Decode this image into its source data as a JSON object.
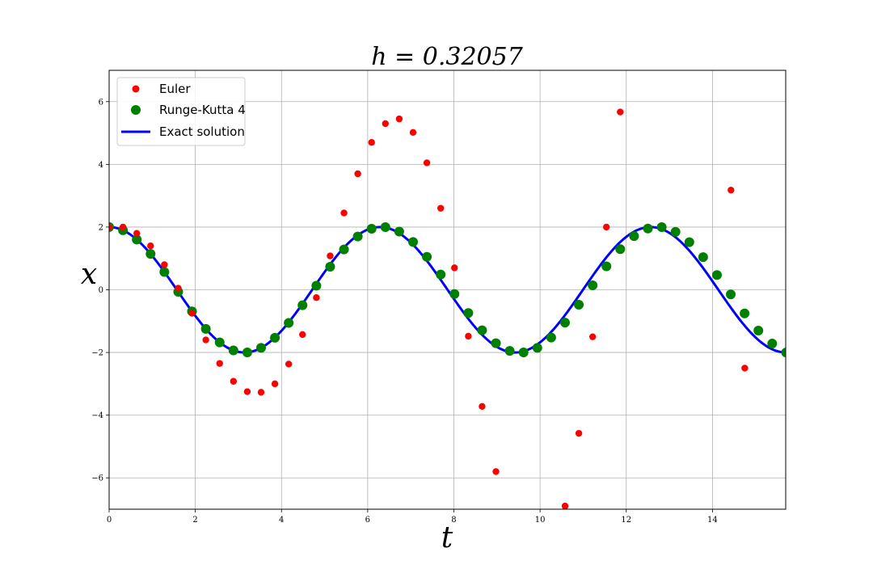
{
  "chart_data": {
    "type": "scatter",
    "title": "h = 0.32057",
    "xlabel": "t",
    "ylabel": "x",
    "xlim": [
      0,
      15.7
    ],
    "ylim": [
      -7,
      7
    ],
    "x_ticks": [
      0,
      2,
      4,
      6,
      8,
      10,
      12,
      14
    ],
    "y_ticks": [
      -6,
      -4,
      -2,
      0,
      2,
      4,
      6
    ],
    "x_tick_labels": [
      "0",
      "2",
      "4",
      "6",
      "8",
      "10",
      "12",
      "14"
    ],
    "y_tick_labels": [
      "−6",
      "−4",
      "−2",
      "0",
      "2",
      "4",
      "6"
    ],
    "grid": true,
    "legend_position": "top-left",
    "step": 0.32057,
    "series": [
      {
        "name": "Euler",
        "kind": "markers",
        "color": "#ff0000",
        "x": [
          0,
          0.321,
          0.641,
          0.962,
          1.282,
          1.603,
          1.923,
          2.244,
          2.565,
          2.885,
          3.206,
          3.526,
          3.847,
          4.167,
          4.488,
          4.809,
          5.129,
          5.45,
          5.77,
          6.091,
          6.411,
          6.732,
          7.053,
          7.373,
          7.694,
          8.014,
          8.335,
          8.655,
          8.976,
          10.58,
          10.9,
          11.22,
          11.54,
          11.86,
          14.43,
          14.75
        ],
        "y": [
          2.0,
          2.0,
          1.8,
          1.4,
          0.8,
          0.05,
          -0.75,
          -1.6,
          -2.35,
          -2.92,
          -3.25,
          -3.27,
          -3.0,
          -2.37,
          -1.43,
          -0.25,
          1.08,
          2.45,
          3.7,
          4.7,
          5.3,
          5.45,
          5.02,
          4.05,
          2.6,
          0.7,
          -1.48,
          -3.72,
          -5.8,
          -6.9,
          -4.58,
          -1.5,
          2.0,
          5.67,
          3.18,
          -2.5
        ]
      },
      {
        "name": "Runge-Kutta 4",
        "kind": "markers",
        "color": "#008000",
        "x": [
          0,
          0.321,
          0.641,
          0.962,
          1.282,
          1.603,
          1.923,
          2.244,
          2.565,
          2.885,
          3.206,
          3.526,
          3.847,
          4.167,
          4.488,
          4.809,
          5.129,
          5.45,
          5.77,
          6.091,
          6.411,
          6.732,
          7.053,
          7.373,
          7.694,
          8.014,
          8.335,
          8.655,
          8.976,
          9.296,
          9.617,
          9.937,
          10.258,
          10.579,
          10.899,
          11.22,
          11.54,
          11.861,
          12.181,
          12.502,
          12.823,
          13.143,
          13.464,
          13.784,
          14.105,
          14.425,
          14.746,
          15.066,
          15.387,
          15.708
        ],
        "y": [
          2.0,
          1.898,
          1.603,
          1.143,
          0.568,
          -0.065,
          -0.69,
          -1.246,
          -1.679,
          -1.934,
          -1.997,
          -1.854,
          -1.53,
          -1.057,
          -0.492,
          0.128,
          0.736,
          1.286,
          1.7,
          1.946,
          1.997,
          1.857,
          1.524,
          1.052,
          0.486,
          -0.134,
          -0.742,
          -1.292,
          -1.705,
          -1.95,
          -1.999,
          -1.852,
          -1.524,
          -1.049,
          -0.477,
          0.141,
          0.749,
          1.297,
          1.71,
          1.953,
          1.998,
          1.846,
          1.517,
          1.041,
          0.471,
          -0.148,
          -0.755,
          -1.303,
          -1.716,
          -2.0
        ]
      },
      {
        "name": "Exact solution",
        "kind": "line",
        "color": "#0000ff",
        "function": "2cos(t)"
      }
    ]
  }
}
